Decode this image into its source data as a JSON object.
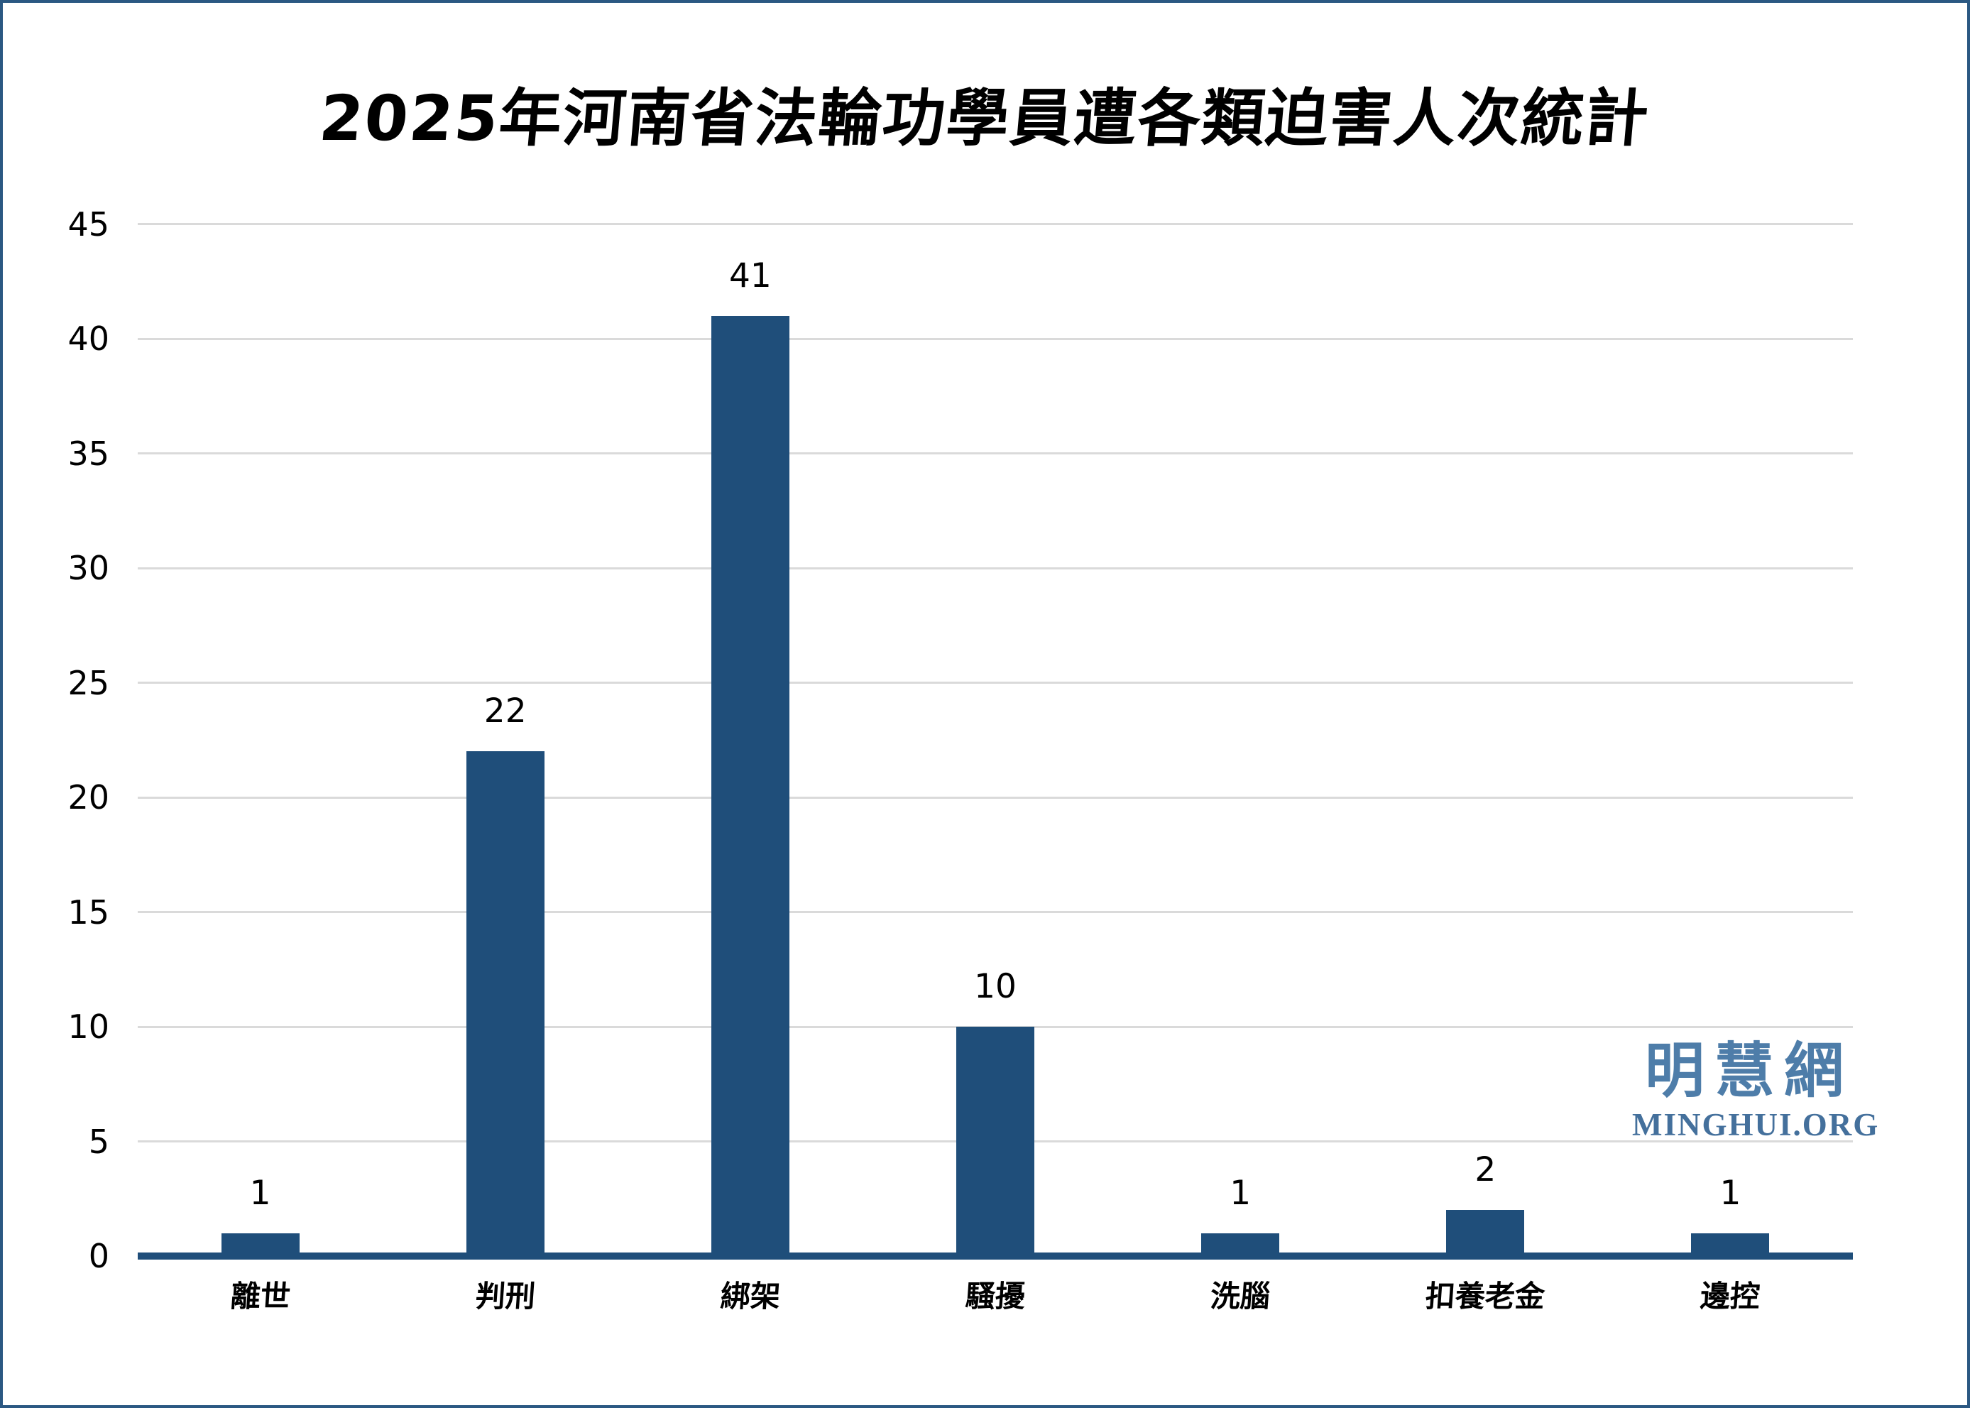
{
  "chart_data": {
    "type": "bar",
    "title": "2025年河南省法輪功學員遭各類迫害人次統計",
    "categories": [
      "離世",
      "判刑",
      "綁架",
      "騷擾",
      "洗腦",
      "扣養老金",
      "邊控"
    ],
    "values": [
      1,
      22,
      41,
      10,
      1,
      2,
      1
    ],
    "xlabel": "",
    "ylabel": "",
    "ylim": [
      0,
      45
    ],
    "yticks": [
      0,
      5,
      10,
      15,
      20,
      25,
      30,
      35,
      40,
      45
    ],
    "grid": true,
    "legend": "none",
    "bar_color": "#1F4E7A",
    "gridline_color": "#DADADA",
    "baseline_color": "#1F4E7A",
    "value_labels_shown": true
  },
  "watermark": {
    "cjk": "明慧網",
    "latin": "MINGHUI.ORG",
    "cjk_color": "#4E7DA9",
    "latin_color": "#44709C"
  },
  "frame": {
    "border_color": "#2B5882",
    "background_color": "#FFFFFF"
  }
}
